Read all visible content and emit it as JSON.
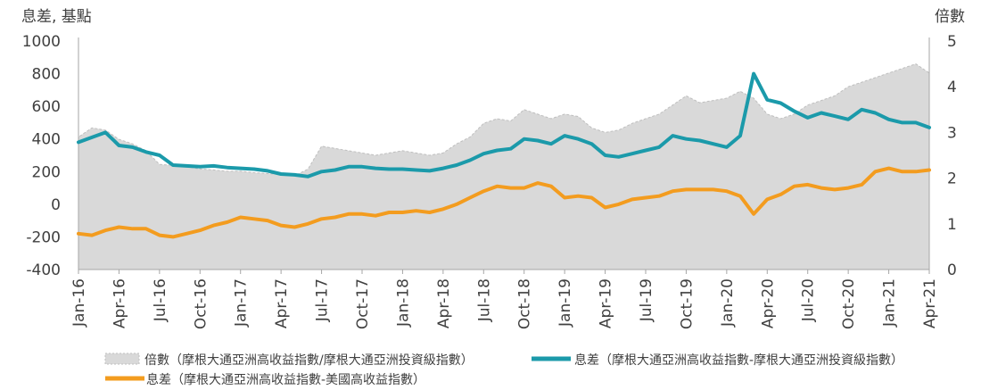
{
  "chart_data": {
    "type": "line",
    "left_axis_label": "息差, 基點",
    "right_axis_label": "倍數",
    "y_left_lim": [
      -400,
      1000
    ],
    "y_left_ticks": [
      "1000",
      "800",
      "600",
      "400",
      "200",
      "0",
      "-200",
      "-400"
    ],
    "y_right_lim": [
      0,
      5
    ],
    "y_right_ticks": [
      "5",
      "4",
      "3",
      "2",
      "1",
      "0"
    ],
    "x_ticks": [
      "Jan-16",
      "Apr-16",
      "Jul-16",
      "Oct-16",
      "Jan-17",
      "Apr-17",
      "Jul-17",
      "Oct-17",
      "Jan-18",
      "Apr-18",
      "Jul-18",
      "Oct-18",
      "Jan-19",
      "Apr-19",
      "Jul-19",
      "Oct-19",
      "Jan-20",
      "Apr-20",
      "Jul-20",
      "Oct-20",
      "Jan-21",
      "Apr-21"
    ],
    "colors": {
      "ratio_fill": "#d9d9d9",
      "ratio_edge": "#bfbfbf",
      "spread_hy_ig": "#1b9aaa",
      "spread_asia_us": "#f39c1f"
    },
    "series": [
      {
        "name": "倍數（摩根大通亞洲高收益指數/摩根大通亞洲投資級指數）",
        "axis": "right",
        "style": "area",
        "x": [
          "Jan-16",
          "Feb-16",
          "Mar-16",
          "Apr-16",
          "May-16",
          "Jun-16",
          "Jul-16",
          "Aug-16",
          "Sep-16",
          "Oct-16",
          "Nov-16",
          "Dec-16",
          "Jan-17",
          "Feb-17",
          "Mar-17",
          "Apr-17",
          "May-17",
          "Jun-17",
          "Jul-17",
          "Aug-17",
          "Sep-17",
          "Oct-17",
          "Nov-17",
          "Dec-17",
          "Jan-18",
          "Feb-18",
          "Mar-18",
          "Apr-18",
          "May-18",
          "Jun-18",
          "Jul-18",
          "Aug-18",
          "Sep-18",
          "Oct-18",
          "Nov-18",
          "Dec-18",
          "Jan-19",
          "Feb-19",
          "Mar-19",
          "Apr-19",
          "May-19",
          "Jun-19",
          "Jul-19",
          "Aug-19",
          "Sep-19",
          "Oct-19",
          "Nov-19",
          "Dec-19",
          "Jan-20",
          "Feb-20",
          "Mar-20",
          "Apr-20",
          "May-20",
          "Jun-20",
          "Jul-20",
          "Aug-20",
          "Sep-20",
          "Oct-20",
          "Nov-20",
          "Dec-20",
          "Jan-21",
          "Feb-21",
          "Mar-21",
          "Apr-21"
        ],
        "values": [
          2.9,
          3.1,
          3.05,
          2.85,
          2.75,
          2.6,
          2.3,
          2.28,
          2.25,
          2.2,
          2.18,
          2.15,
          2.15,
          2.12,
          2.1,
          2.08,
          2.05,
          2.2,
          2.7,
          2.65,
          2.6,
          2.55,
          2.5,
          2.55,
          2.6,
          2.55,
          2.5,
          2.55,
          2.75,
          2.9,
          3.2,
          3.3,
          3.25,
          3.5,
          3.4,
          3.3,
          3.4,
          3.35,
          3.1,
          3.0,
          3.05,
          3.2,
          3.3,
          3.4,
          3.6,
          3.8,
          3.65,
          3.7,
          3.75,
          3.9,
          3.75,
          3.4,
          3.3,
          3.4,
          3.6,
          3.7,
          3.8,
          4.0,
          4.1,
          4.2,
          4.3,
          4.4,
          4.5,
          4.3
        ]
      },
      {
        "name": "息差（摩根大通亞洲高收益指數-摩根大通亞洲投資級指數）",
        "axis": "left",
        "style": "line",
        "x": [
          "Jan-16",
          "Feb-16",
          "Mar-16",
          "Apr-16",
          "May-16",
          "Jun-16",
          "Jul-16",
          "Aug-16",
          "Sep-16",
          "Oct-16",
          "Nov-16",
          "Dec-16",
          "Jan-17",
          "Feb-17",
          "Mar-17",
          "Apr-17",
          "May-17",
          "Jun-17",
          "Jul-17",
          "Aug-17",
          "Sep-17",
          "Oct-17",
          "Nov-17",
          "Dec-17",
          "Jan-18",
          "Feb-18",
          "Mar-18",
          "Apr-18",
          "May-18",
          "Jun-18",
          "Jul-18",
          "Aug-18",
          "Sep-18",
          "Oct-18",
          "Nov-18",
          "Dec-18",
          "Jan-19",
          "Feb-19",
          "Mar-19",
          "Apr-19",
          "May-19",
          "Jun-19",
          "Jul-19",
          "Aug-19",
          "Sep-19",
          "Oct-19",
          "Nov-19",
          "Dec-19",
          "Jan-20",
          "Feb-20",
          "Mar-20",
          "Apr-20",
          "May-20",
          "Jun-20",
          "Jul-20",
          "Aug-20",
          "Sep-20",
          "Oct-20",
          "Nov-20",
          "Dec-20",
          "Jan-21",
          "Feb-21",
          "Mar-21",
          "Apr-21"
        ],
        "values": [
          380,
          410,
          440,
          360,
          350,
          320,
          300,
          240,
          235,
          230,
          235,
          225,
          220,
          215,
          205,
          185,
          180,
          170,
          200,
          210,
          230,
          230,
          220,
          215,
          215,
          210,
          205,
          220,
          240,
          270,
          310,
          330,
          340,
          400,
          390,
          370,
          420,
          400,
          370,
          300,
          290,
          310,
          330,
          350,
          420,
          400,
          390,
          370,
          350,
          420,
          800,
          640,
          620,
          570,
          530,
          560,
          540,
          520,
          580,
          560,
          520,
          500,
          500,
          470
        ]
      },
      {
        "name": "息差（摩根大通亞洲高收益指數-美國高收益指數）",
        "axis": "left",
        "style": "line",
        "x": [
          "Jan-16",
          "Feb-16",
          "Mar-16",
          "Apr-16",
          "May-16",
          "Jun-16",
          "Jul-16",
          "Aug-16",
          "Sep-16",
          "Oct-16",
          "Nov-16",
          "Dec-16",
          "Jan-17",
          "Feb-17",
          "Mar-17",
          "Apr-17",
          "May-17",
          "Jun-17",
          "Jul-17",
          "Aug-17",
          "Sep-17",
          "Oct-17",
          "Nov-17",
          "Dec-17",
          "Jan-18",
          "Feb-18",
          "Mar-18",
          "Apr-18",
          "May-18",
          "Jun-18",
          "Jul-18",
          "Aug-18",
          "Sep-18",
          "Oct-18",
          "Nov-18",
          "Dec-18",
          "Jan-19",
          "Feb-19",
          "Mar-19",
          "Apr-19",
          "May-19",
          "Jun-19",
          "Jul-19",
          "Aug-19",
          "Sep-19",
          "Oct-19",
          "Nov-19",
          "Dec-19",
          "Jan-20",
          "Feb-20",
          "Mar-20",
          "Apr-20",
          "May-20",
          "Jun-20",
          "Jul-20",
          "Aug-20",
          "Sep-20",
          "Oct-20",
          "Nov-20",
          "Dec-20",
          "Jan-21",
          "Feb-21",
          "Mar-21",
          "Apr-21"
        ],
        "values": [
          -180,
          -190,
          -160,
          -140,
          -150,
          -150,
          -190,
          -200,
          -180,
          -160,
          -130,
          -110,
          -80,
          -90,
          -100,
          -130,
          -140,
          -120,
          -90,
          -80,
          -60,
          -60,
          -70,
          -50,
          -50,
          -40,
          -50,
          -30,
          0,
          40,
          80,
          110,
          100,
          100,
          130,
          110,
          40,
          50,
          40,
          -20,
          0,
          30,
          40,
          50,
          80,
          90,
          90,
          90,
          80,
          50,
          -60,
          30,
          60,
          110,
          120,
          100,
          90,
          100,
          120,
          200,
          220,
          200,
          200,
          210
        ]
      }
    ]
  }
}
